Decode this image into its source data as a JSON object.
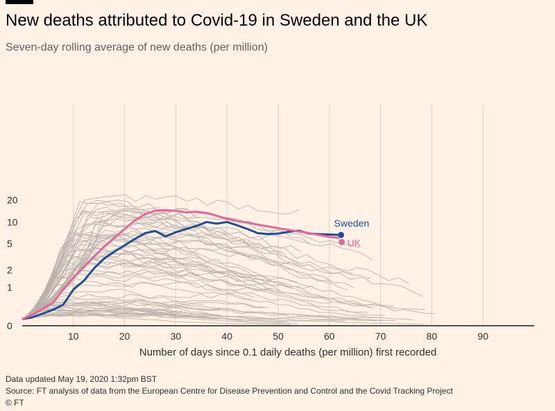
{
  "title": "New deaths attributed to Covid-19 in Sweden and the UK",
  "subtitle": "Seven-day rolling average of new deaths (per million)",
  "footer": {
    "updated": "Data updated May 19, 2020 1:32pm BST",
    "source": "Source: FT analysis of data from the European Centre for Disease Prevention and Control and the Covid Tracking Project",
    "credit": "© FT"
  },
  "colors": {
    "background": "#fff1e5",
    "sweden": "#1f4e99",
    "uk": "#e3699a",
    "others": "#b8b0aa",
    "grid": "#d9cfc7"
  },
  "chart_data": {
    "type": "line",
    "title": "New deaths attributed to Covid-19 in Sweden and the UK",
    "subtitle": "Seven-day rolling average of new deaths (per million)",
    "xlabel": "Number of days since 0.1 daily deaths (per million) first recorded",
    "ylabel": "",
    "xlim": [
      0,
      100
    ],
    "ylim": [
      0,
      30
    ],
    "yscale": "log-like",
    "x_ticks": [
      "10",
      "20",
      "30",
      "40",
      "50",
      "60",
      "70",
      "80",
      "90"
    ],
    "y_ticks": [
      "0",
      "1",
      "2",
      "5",
      "10",
      "20"
    ],
    "grid": "vertical",
    "series": [
      {
        "name": "Sweden",
        "x": [
          0,
          2,
          4,
          6,
          8,
          10,
          12,
          14,
          16,
          18,
          20,
          22,
          24,
          26,
          28,
          30,
          32,
          34,
          36,
          38,
          40,
          42,
          44,
          46,
          48,
          50,
          52,
          54,
          56,
          58,
          60,
          62
        ],
        "values": [
          0.1,
          0.13,
          0.2,
          0.28,
          0.4,
          0.9,
          1.3,
          2.1,
          3.0,
          3.8,
          4.7,
          5.8,
          7.0,
          7.5,
          6.3,
          7.2,
          8.0,
          8.8,
          10.0,
          9.5,
          10.0,
          9.0,
          8.0,
          7.0,
          6.8,
          6.9,
          7.3,
          7.6,
          6.9,
          6.8,
          6.7,
          6.6
        ]
      },
      {
        "name": "UK",
        "x": [
          0,
          2,
          4,
          6,
          8,
          10,
          12,
          14,
          16,
          18,
          20,
          22,
          24,
          26,
          28,
          30,
          32,
          34,
          36,
          38,
          40,
          42,
          44,
          46,
          48,
          50,
          52,
          54,
          56,
          58,
          60,
          62
        ],
        "values": [
          0.1,
          0.18,
          0.3,
          0.45,
          0.9,
          1.5,
          2.2,
          3.2,
          4.5,
          6.0,
          8.0,
          10.5,
          12.8,
          14.3,
          14.5,
          14.2,
          13.5,
          13.8,
          13.3,
          12.2,
          11.0,
          10.3,
          9.8,
          9.2,
          8.7,
          8.2,
          7.8,
          7.4,
          7.0,
          6.6,
          6.2,
          6.0
        ]
      }
    ]
  }
}
